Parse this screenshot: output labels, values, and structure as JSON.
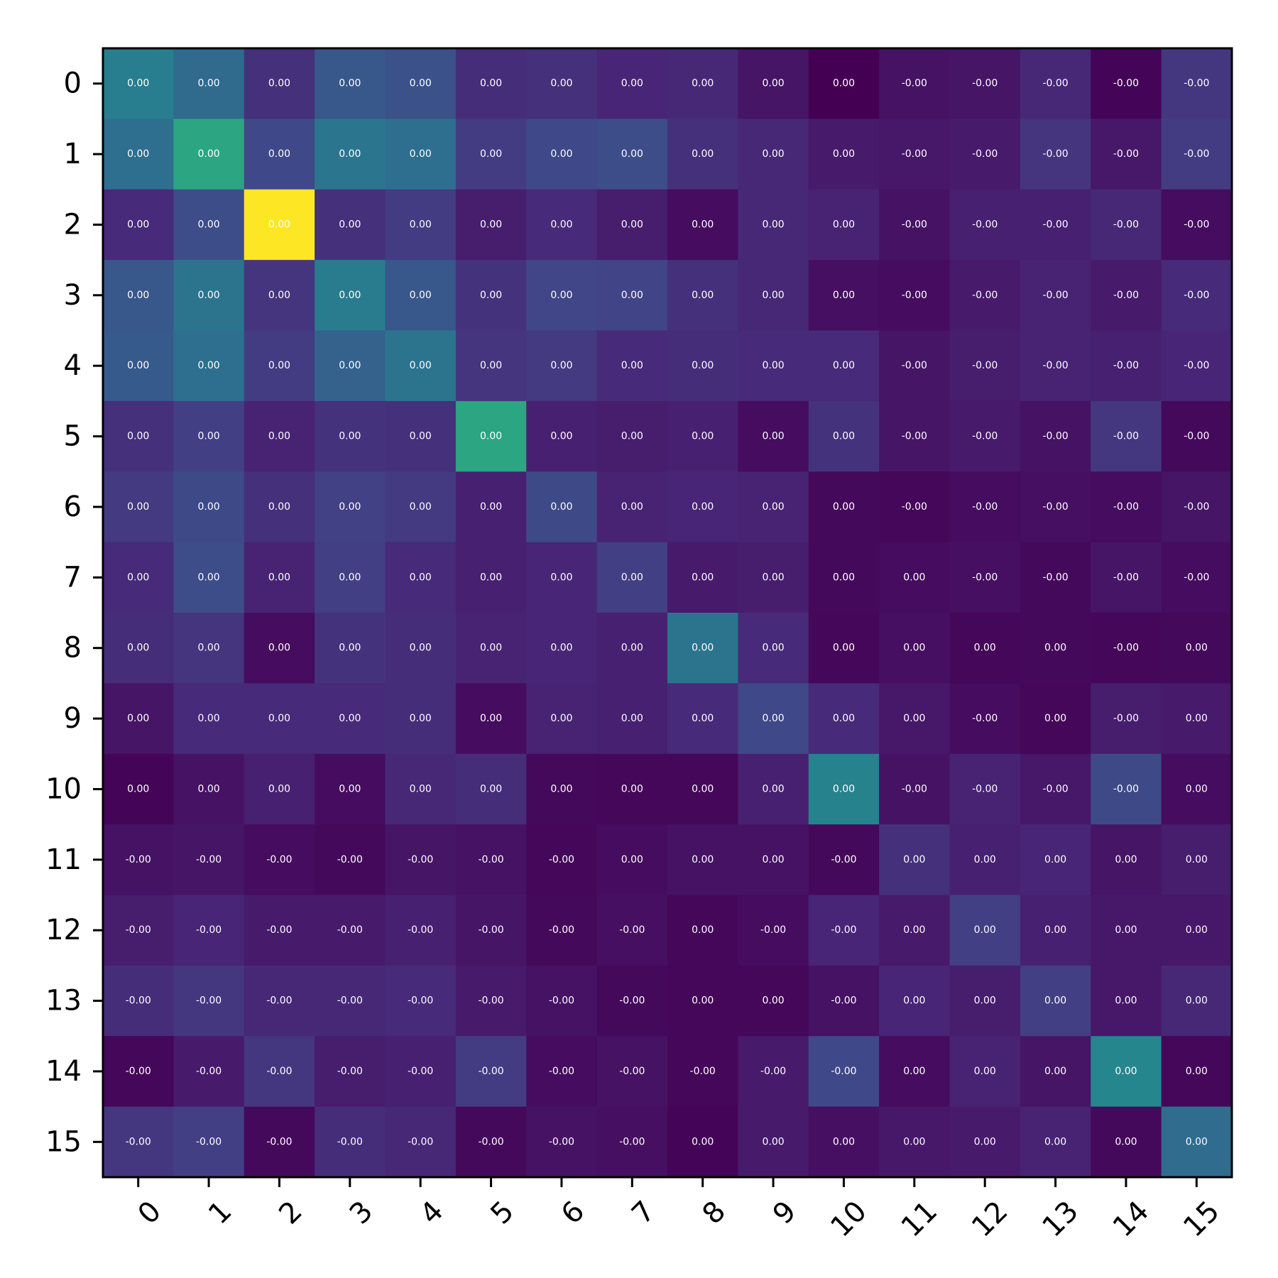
{
  "chart_data": {
    "type": "heatmap",
    "title": "",
    "xlabel": "",
    "ylabel": "",
    "x_ticks": [
      "0",
      "1",
      "2",
      "3",
      "4",
      "5",
      "6",
      "7",
      "8",
      "9",
      "10",
      "11",
      "12",
      "13",
      "14",
      "15"
    ],
    "y_ticks": [
      "0",
      "1",
      "2",
      "3",
      "4",
      "5",
      "6",
      "7",
      "8",
      "9",
      "10",
      "11",
      "12",
      "13",
      "14",
      "15"
    ],
    "x_tick_rotation": 45,
    "colormap": "viridis",
    "grid": false,
    "intensity": [
      [
        0.53,
        0.43,
        0.17,
        0.34,
        0.31,
        0.16,
        0.17,
        0.13,
        0.14,
        0.07,
        0.0,
        0.06,
        0.07,
        0.14,
        0.01,
        0.2
      ],
      [
        0.45,
        0.69,
        0.27,
        0.49,
        0.45,
        0.22,
        0.27,
        0.29,
        0.17,
        0.14,
        0.09,
        0.08,
        0.09,
        0.19,
        0.08,
        0.22
      ],
      [
        0.15,
        0.29,
        1.0,
        0.17,
        0.22,
        0.1,
        0.15,
        0.1,
        0.04,
        0.14,
        0.12,
        0.06,
        0.11,
        0.11,
        0.14,
        0.04
      ],
      [
        0.34,
        0.48,
        0.19,
        0.52,
        0.34,
        0.18,
        0.26,
        0.25,
        0.17,
        0.14,
        0.05,
        0.04,
        0.09,
        0.12,
        0.09,
        0.15
      ],
      [
        0.35,
        0.45,
        0.22,
        0.39,
        0.48,
        0.19,
        0.21,
        0.15,
        0.16,
        0.15,
        0.15,
        0.07,
        0.1,
        0.12,
        0.11,
        0.13
      ],
      [
        0.17,
        0.23,
        0.12,
        0.18,
        0.17,
        0.69,
        0.11,
        0.1,
        0.11,
        0.04,
        0.18,
        0.07,
        0.09,
        0.06,
        0.2,
        0.03
      ],
      [
        0.21,
        0.28,
        0.17,
        0.24,
        0.21,
        0.11,
        0.28,
        0.12,
        0.13,
        0.12,
        0.03,
        0.02,
        0.04,
        0.05,
        0.04,
        0.07
      ],
      [
        0.15,
        0.29,
        0.12,
        0.23,
        0.15,
        0.11,
        0.13,
        0.23,
        0.09,
        0.1,
        0.03,
        0.04,
        0.05,
        0.03,
        0.07,
        0.04
      ],
      [
        0.16,
        0.19,
        0.04,
        0.18,
        0.16,
        0.12,
        0.13,
        0.11,
        0.48,
        0.15,
        0.02,
        0.05,
        0.02,
        0.03,
        0.02,
        0.03
      ],
      [
        0.07,
        0.15,
        0.15,
        0.15,
        0.16,
        0.04,
        0.12,
        0.11,
        0.15,
        0.27,
        0.15,
        0.08,
        0.04,
        0.02,
        0.1,
        0.09
      ],
      [
        0.01,
        0.06,
        0.11,
        0.04,
        0.14,
        0.16,
        0.03,
        0.02,
        0.02,
        0.11,
        0.55,
        0.06,
        0.12,
        0.08,
        0.28,
        0.04
      ],
      [
        0.06,
        0.07,
        0.04,
        0.03,
        0.07,
        0.06,
        0.02,
        0.04,
        0.06,
        0.06,
        0.03,
        0.17,
        0.11,
        0.13,
        0.07,
        0.1
      ],
      [
        0.1,
        0.13,
        0.09,
        0.09,
        0.11,
        0.07,
        0.03,
        0.05,
        0.02,
        0.04,
        0.13,
        0.09,
        0.23,
        0.11,
        0.08,
        0.08
      ],
      [
        0.16,
        0.2,
        0.14,
        0.14,
        0.15,
        0.09,
        0.06,
        0.03,
        0.02,
        0.02,
        0.06,
        0.13,
        0.1,
        0.23,
        0.08,
        0.14
      ],
      [
        0.02,
        0.09,
        0.2,
        0.1,
        0.11,
        0.22,
        0.04,
        0.06,
        0.02,
        0.09,
        0.27,
        0.04,
        0.12,
        0.07,
        0.57,
        0.02
      ],
      [
        0.2,
        0.23,
        0.03,
        0.16,
        0.14,
        0.03,
        0.06,
        0.05,
        0.01,
        0.09,
        0.05,
        0.08,
        0.09,
        0.12,
        0.03,
        0.44
      ]
    ],
    "cell_labels": [
      [
        "0.00",
        "0.00",
        "0.00",
        "0.00",
        "0.00",
        "0.00",
        "0.00",
        "0.00",
        "0.00",
        "0.00",
        "0.00",
        "-0.00",
        "-0.00",
        "-0.00",
        "-0.00",
        "-0.00"
      ],
      [
        "0.00",
        "0.00",
        "0.00",
        "0.00",
        "0.00",
        "0.00",
        "0.00",
        "0.00",
        "0.00",
        "0.00",
        "0.00",
        "-0.00",
        "-0.00",
        "-0.00",
        "-0.00",
        "-0.00"
      ],
      [
        "0.00",
        "0.00",
        "0.00",
        "0.00",
        "0.00",
        "0.00",
        "0.00",
        "0.00",
        "0.00",
        "0.00",
        "0.00",
        "-0.00",
        "-0.00",
        "-0.00",
        "-0.00",
        "-0.00"
      ],
      [
        "0.00",
        "0.00",
        "0.00",
        "0.00",
        "0.00",
        "0.00",
        "0.00",
        "0.00",
        "0.00",
        "0.00",
        "0.00",
        "-0.00",
        "-0.00",
        "-0.00",
        "-0.00",
        "-0.00"
      ],
      [
        "0.00",
        "0.00",
        "0.00",
        "0.00",
        "0.00",
        "0.00",
        "0.00",
        "0.00",
        "0.00",
        "0.00",
        "0.00",
        "-0.00",
        "-0.00",
        "-0.00",
        "-0.00",
        "-0.00"
      ],
      [
        "0.00",
        "0.00",
        "0.00",
        "0.00",
        "0.00",
        "0.00",
        "0.00",
        "0.00",
        "0.00",
        "0.00",
        "0.00",
        "-0.00",
        "-0.00",
        "-0.00",
        "-0.00",
        "-0.00"
      ],
      [
        "0.00",
        "0.00",
        "0.00",
        "0.00",
        "0.00",
        "0.00",
        "0.00",
        "0.00",
        "0.00",
        "0.00",
        "0.00",
        "-0.00",
        "-0.00",
        "-0.00",
        "-0.00",
        "-0.00"
      ],
      [
        "0.00",
        "0.00",
        "0.00",
        "0.00",
        "0.00",
        "0.00",
        "0.00",
        "0.00",
        "0.00",
        "0.00",
        "0.00",
        "0.00",
        "-0.00",
        "-0.00",
        "-0.00",
        "-0.00"
      ],
      [
        "0.00",
        "0.00",
        "0.00",
        "0.00",
        "0.00",
        "0.00",
        "0.00",
        "0.00",
        "0.00",
        "0.00",
        "0.00",
        "0.00",
        "0.00",
        "0.00",
        "-0.00",
        "0.00"
      ],
      [
        "0.00",
        "0.00",
        "0.00",
        "0.00",
        "0.00",
        "0.00",
        "0.00",
        "0.00",
        "0.00",
        "0.00",
        "0.00",
        "0.00",
        "-0.00",
        "0.00",
        "-0.00",
        "0.00"
      ],
      [
        "0.00",
        "0.00",
        "0.00",
        "0.00",
        "0.00",
        "0.00",
        "0.00",
        "0.00",
        "0.00",
        "0.00",
        "0.00",
        "-0.00",
        "-0.00",
        "-0.00",
        "-0.00",
        "0.00"
      ],
      [
        "-0.00",
        "-0.00",
        "-0.00",
        "-0.00",
        "-0.00",
        "-0.00",
        "-0.00",
        "0.00",
        "0.00",
        "0.00",
        "-0.00",
        "0.00",
        "0.00",
        "0.00",
        "0.00",
        "0.00"
      ],
      [
        "-0.00",
        "-0.00",
        "-0.00",
        "-0.00",
        "-0.00",
        "-0.00",
        "-0.00",
        "-0.00",
        "0.00",
        "-0.00",
        "-0.00",
        "0.00",
        "0.00",
        "0.00",
        "0.00",
        "0.00"
      ],
      [
        "-0.00",
        "-0.00",
        "-0.00",
        "-0.00",
        "-0.00",
        "-0.00",
        "-0.00",
        "-0.00",
        "0.00",
        "0.00",
        "-0.00",
        "0.00",
        "0.00",
        "0.00",
        "0.00",
        "0.00"
      ],
      [
        "-0.00",
        "-0.00",
        "-0.00",
        "-0.00",
        "-0.00",
        "-0.00",
        "-0.00",
        "-0.00",
        "-0.00",
        "-0.00",
        "-0.00",
        "0.00",
        "0.00",
        "0.00",
        "0.00",
        "0.00"
      ],
      [
        "-0.00",
        "-0.00",
        "-0.00",
        "-0.00",
        "-0.00",
        "-0.00",
        "-0.00",
        "-0.00",
        "0.00",
        "0.00",
        "0.00",
        "0.00",
        "0.00",
        "0.00",
        "0.00",
        "0.00"
      ]
    ]
  }
}
